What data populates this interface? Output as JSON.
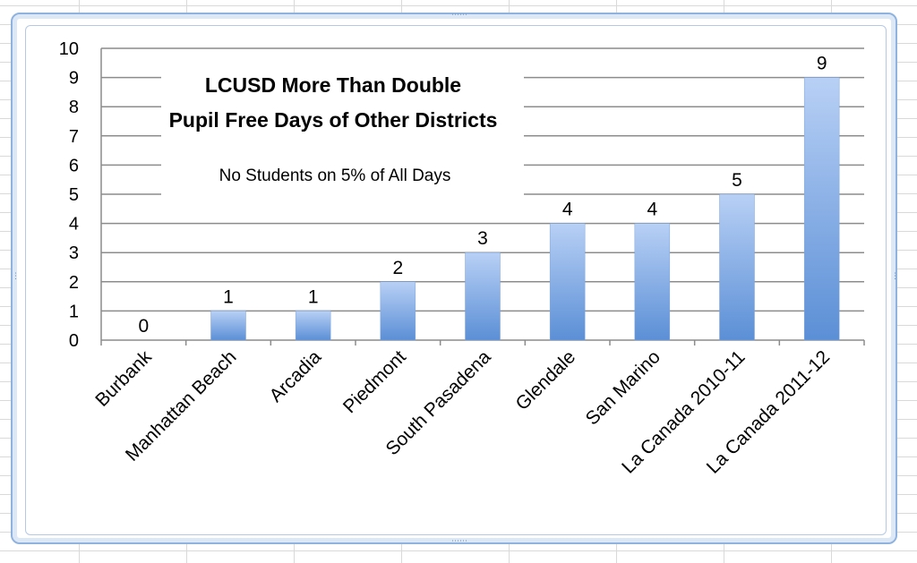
{
  "chart_data": {
    "type": "bar",
    "title_lines": [
      "LCUSD More Than Double",
      "Pupil Free Days of Other Districts"
    ],
    "subtitle": "No Students on 5% of All Days",
    "categories": [
      "Burbank",
      "Manhattan Beach",
      "Arcadia",
      "Piedmont",
      "South Pasadena",
      "Glendale",
      "San Marino",
      "La Canada 2010-11",
      "La Canada 2011-12"
    ],
    "values": [
      0,
      1,
      1,
      2,
      3,
      4,
      4,
      5,
      9
    ],
    "ylim": [
      0,
      10
    ],
    "yticks": [
      0,
      1,
      2,
      3,
      4,
      5,
      6,
      7,
      8,
      9,
      10
    ],
    "grid": true,
    "legend": "none",
    "bar_color_top": "#b8d0f5",
    "bar_color_bottom": "#5b8fd6",
    "gridline_color": "#8c8c8c"
  }
}
